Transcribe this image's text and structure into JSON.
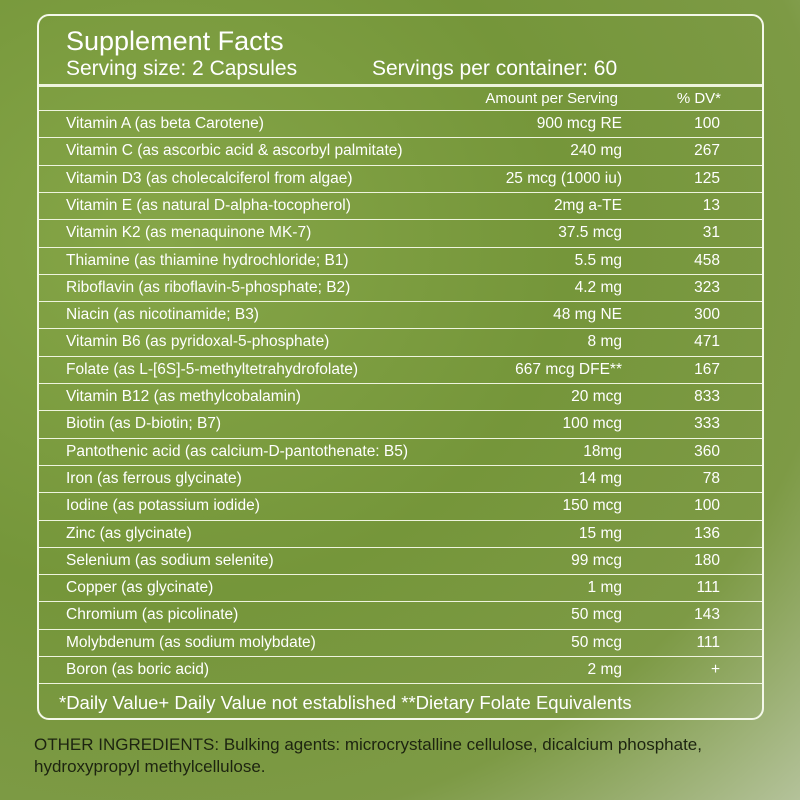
{
  "header": {
    "title": "Supplement Facts",
    "serving_size": "Serving size: 2 Capsules",
    "servings_per_container": "Servings per container: 60"
  },
  "table": {
    "columns": [
      "Amount per Serving",
      "% DV*"
    ],
    "rows": [
      [
        "Vitamin A (as beta Carotene)",
        "900 mcg RE",
        "100"
      ],
      [
        "Vitamin C (as ascorbic acid & ascorbyl palmitate)",
        "240 mg",
        "267"
      ],
      [
        "Vitamin D3 (as cholecalciferol from algae)",
        "25 mcg (1000 iu)",
        "125"
      ],
      [
        "Vitamin E (as natural D-alpha-tocopherol)",
        "2mg a-TE",
        "13"
      ],
      [
        "Vitamin K2 (as menaquinone MK-7)",
        "37.5 mcg",
        "31"
      ],
      [
        "Thiamine (as thiamine hydrochloride; B1)",
        "5.5 mg",
        "458"
      ],
      [
        "Riboflavin (as riboflavin-5-phosphate; B2)",
        "4.2 mg",
        "323"
      ],
      [
        "Niacin (as nicotinamide; B3)",
        "48 mg NE",
        "300"
      ],
      [
        "Vitamin B6 (as pyridoxal-5-phosphate)",
        "8 mg",
        "471"
      ],
      [
        "Folate (as L-[6S]-5-methyltetrahydrofolate)",
        "667 mcg DFE**",
        "167"
      ],
      [
        "Vitamin B12 (as methylcobalamin)",
        "20 mcg",
        "833"
      ],
      [
        "Biotin (as D-biotin; B7)",
        "100 mcg",
        "333"
      ],
      [
        "Pantothenic acid (as calcium-D-pantothenate: B5)",
        "18mg",
        "360"
      ],
      [
        "Iron (as ferrous glycinate)",
        "14 mg",
        "78"
      ],
      [
        "Iodine (as potassium iodide)",
        "150 mcg",
        "100"
      ],
      [
        "Zinc (as glycinate)",
        "15 mg",
        "136"
      ],
      [
        "Selenium (as sodium selenite)",
        "99 mcg",
        "180"
      ],
      [
        "Copper (as glycinate)",
        "1 mg",
        "111"
      ],
      [
        "Chromium (as picolinate)",
        "50 mcg",
        "143"
      ],
      [
        "Molybdenum (as sodium molybdate)",
        "50 mcg",
        "111"
      ],
      [
        "Boron (as boric acid)",
        "2 mg",
        "+"
      ]
    ]
  },
  "footnote": "*Daily Value+ Daily Value not established **Dietary Folate Equivalents",
  "other_ingredients": "OTHER INGREDIENTS: Bulking agents: microcrystalline cellulose, dicalcium phosphate, hydroxypropyl methylcellulose."
}
